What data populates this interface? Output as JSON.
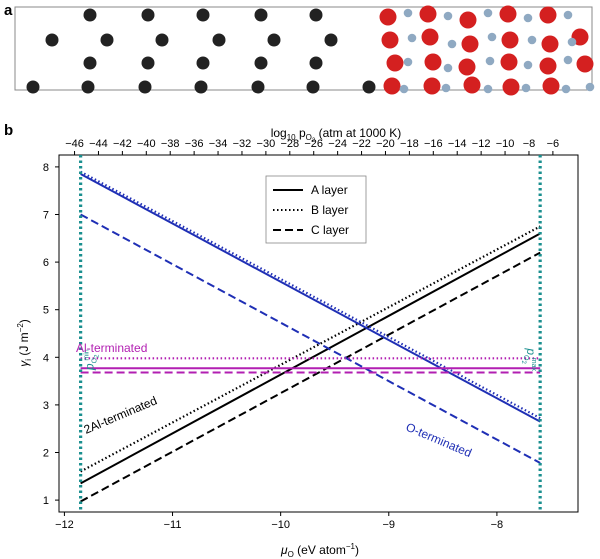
{
  "panel_labels": {
    "a": "a",
    "b": "b"
  },
  "structure_slab": {
    "description_visible": "atomic slab: black atoms (left), red and grey atoms (right)",
    "colors": {
      "black_atom": "#222222",
      "red_atom": "#d42020",
      "grey_atom": "#8fa9c2",
      "frame": "#888888"
    }
  },
  "chart_data": {
    "type": "line",
    "top_axis": {
      "label_prefix": "log",
      "label_sub": "10",
      "label_mid": " p",
      "label_sub2": "O",
      "label_sub3": "2",
      "label_suffix": " (atm at 1000 K)",
      "ticks": [
        -46,
        -44,
        -42,
        -40,
        -38,
        -36,
        -34,
        -32,
        -30,
        -28,
        -26,
        -24,
        -22,
        -20,
        -18,
        -16,
        -14,
        -12,
        -10,
        -8,
        -6
      ],
      "tick_labels": [
        "−46",
        "−44",
        "−42",
        "−40",
        "−38",
        "−36",
        "−34",
        "−32",
        "−30",
        "−28",
        "−26",
        "−24",
        "−22",
        "−20",
        "−18",
        "−16",
        "−14",
        "−12",
        "−10",
        "−8",
        "−6"
      ],
      "range": [
        -47.3,
        -3.9
      ]
    },
    "xlabel_mu": "μ",
    "xlabel_sub": "O",
    "xlabel_rest": " (eV atom",
    "xlabel_sup": "−1",
    "xlabel_close": ")",
    "ylabel_gamma": "γ",
    "ylabel_sub": "i",
    "ylabel_rest": " (J m",
    "ylabel_sup": "−2",
    "ylabel_close": ")",
    "xlim": [
      -12.05,
      -7.25
    ],
    "ylim": [
      0.75,
      8.25
    ],
    "xticks": [
      -12,
      -11,
      -10,
      -9,
      -8
    ],
    "xtick_labels": [
      "−12",
      "−11",
      "−10",
      "−9",
      "−8"
    ],
    "yticks": [
      1,
      2,
      3,
      4,
      5,
      6,
      7,
      8
    ],
    "ytick_labels": [
      "1",
      "2",
      "3",
      "4",
      "5",
      "6",
      "7",
      "8"
    ],
    "grid": false,
    "legend": {
      "placement": "top-center",
      "entries": [
        {
          "label": "A layer",
          "style": "solid"
        },
        {
          "label": "B layer",
          "style": "dotted"
        },
        {
          "label": "C layer",
          "style": "dashed"
        }
      ]
    },
    "series": [
      {
        "group": "2Al-terminated",
        "layer": "A",
        "style": "solid",
        "color": "#000000",
        "x": [
          -11.85,
          -7.6
        ],
        "y": [
          1.35,
          6.6
        ]
      },
      {
        "group": "2Al-terminated",
        "layer": "B",
        "style": "dotted",
        "color": "#000000",
        "x": [
          -11.85,
          -7.6
        ],
        "y": [
          1.6,
          6.75
        ]
      },
      {
        "group": "2Al-terminated",
        "layer": "C",
        "style": "dashed",
        "color": "#000000",
        "x": [
          -11.85,
          -7.6
        ],
        "y": [
          0.97,
          6.2
        ]
      },
      {
        "group": "O-terminated",
        "layer": "A",
        "style": "solid",
        "color": "#1f2fb5",
        "x": [
          -11.85,
          -7.6
        ],
        "y": [
          7.85,
          2.65
        ]
      },
      {
        "group": "O-terminated",
        "layer": "B",
        "style": "dotted",
        "color": "#1f2fb5",
        "x": [
          -11.85,
          -7.6
        ],
        "y": [
          7.9,
          2.72
        ]
      },
      {
        "group": "O-terminated",
        "layer": "C",
        "style": "dashed",
        "color": "#1f2fb5",
        "x": [
          -11.85,
          -7.6
        ],
        "y": [
          7.0,
          1.78
        ]
      },
      {
        "group": "Al-terminated",
        "layer": "A",
        "style": "solid",
        "color": "#b21fb2",
        "x": [
          -11.85,
          -7.6
        ],
        "y": [
          3.77,
          3.77
        ]
      },
      {
        "group": "Al-terminated",
        "layer": "B",
        "style": "dotted",
        "color": "#b21fb2",
        "x": [
          -11.85,
          -7.6
        ],
        "y": [
          3.98,
          3.98
        ]
      },
      {
        "group": "Al-terminated",
        "layer": "C",
        "style": "dashed",
        "color": "#b21fb2",
        "x": [
          -11.85,
          -7.6
        ],
        "y": [
          3.68,
          3.68
        ]
      }
    ],
    "vertical_limits": [
      {
        "x": -11.85,
        "color": "#1a8f8f",
        "label_p": "p",
        "label_sub": "O",
        "label_sub2": "2",
        "label_sup": "min"
      },
      {
        "x": -7.6,
        "color": "#1a8f8f",
        "label_p": "p",
        "label_sub": "O",
        "label_sub2": "2",
        "label_sup": "max"
      }
    ],
    "annotations": {
      "al_terminated": "Al-terminated",
      "two_al_terminated": "2Al-terminated",
      "o_terminated": "O-terminated"
    }
  }
}
